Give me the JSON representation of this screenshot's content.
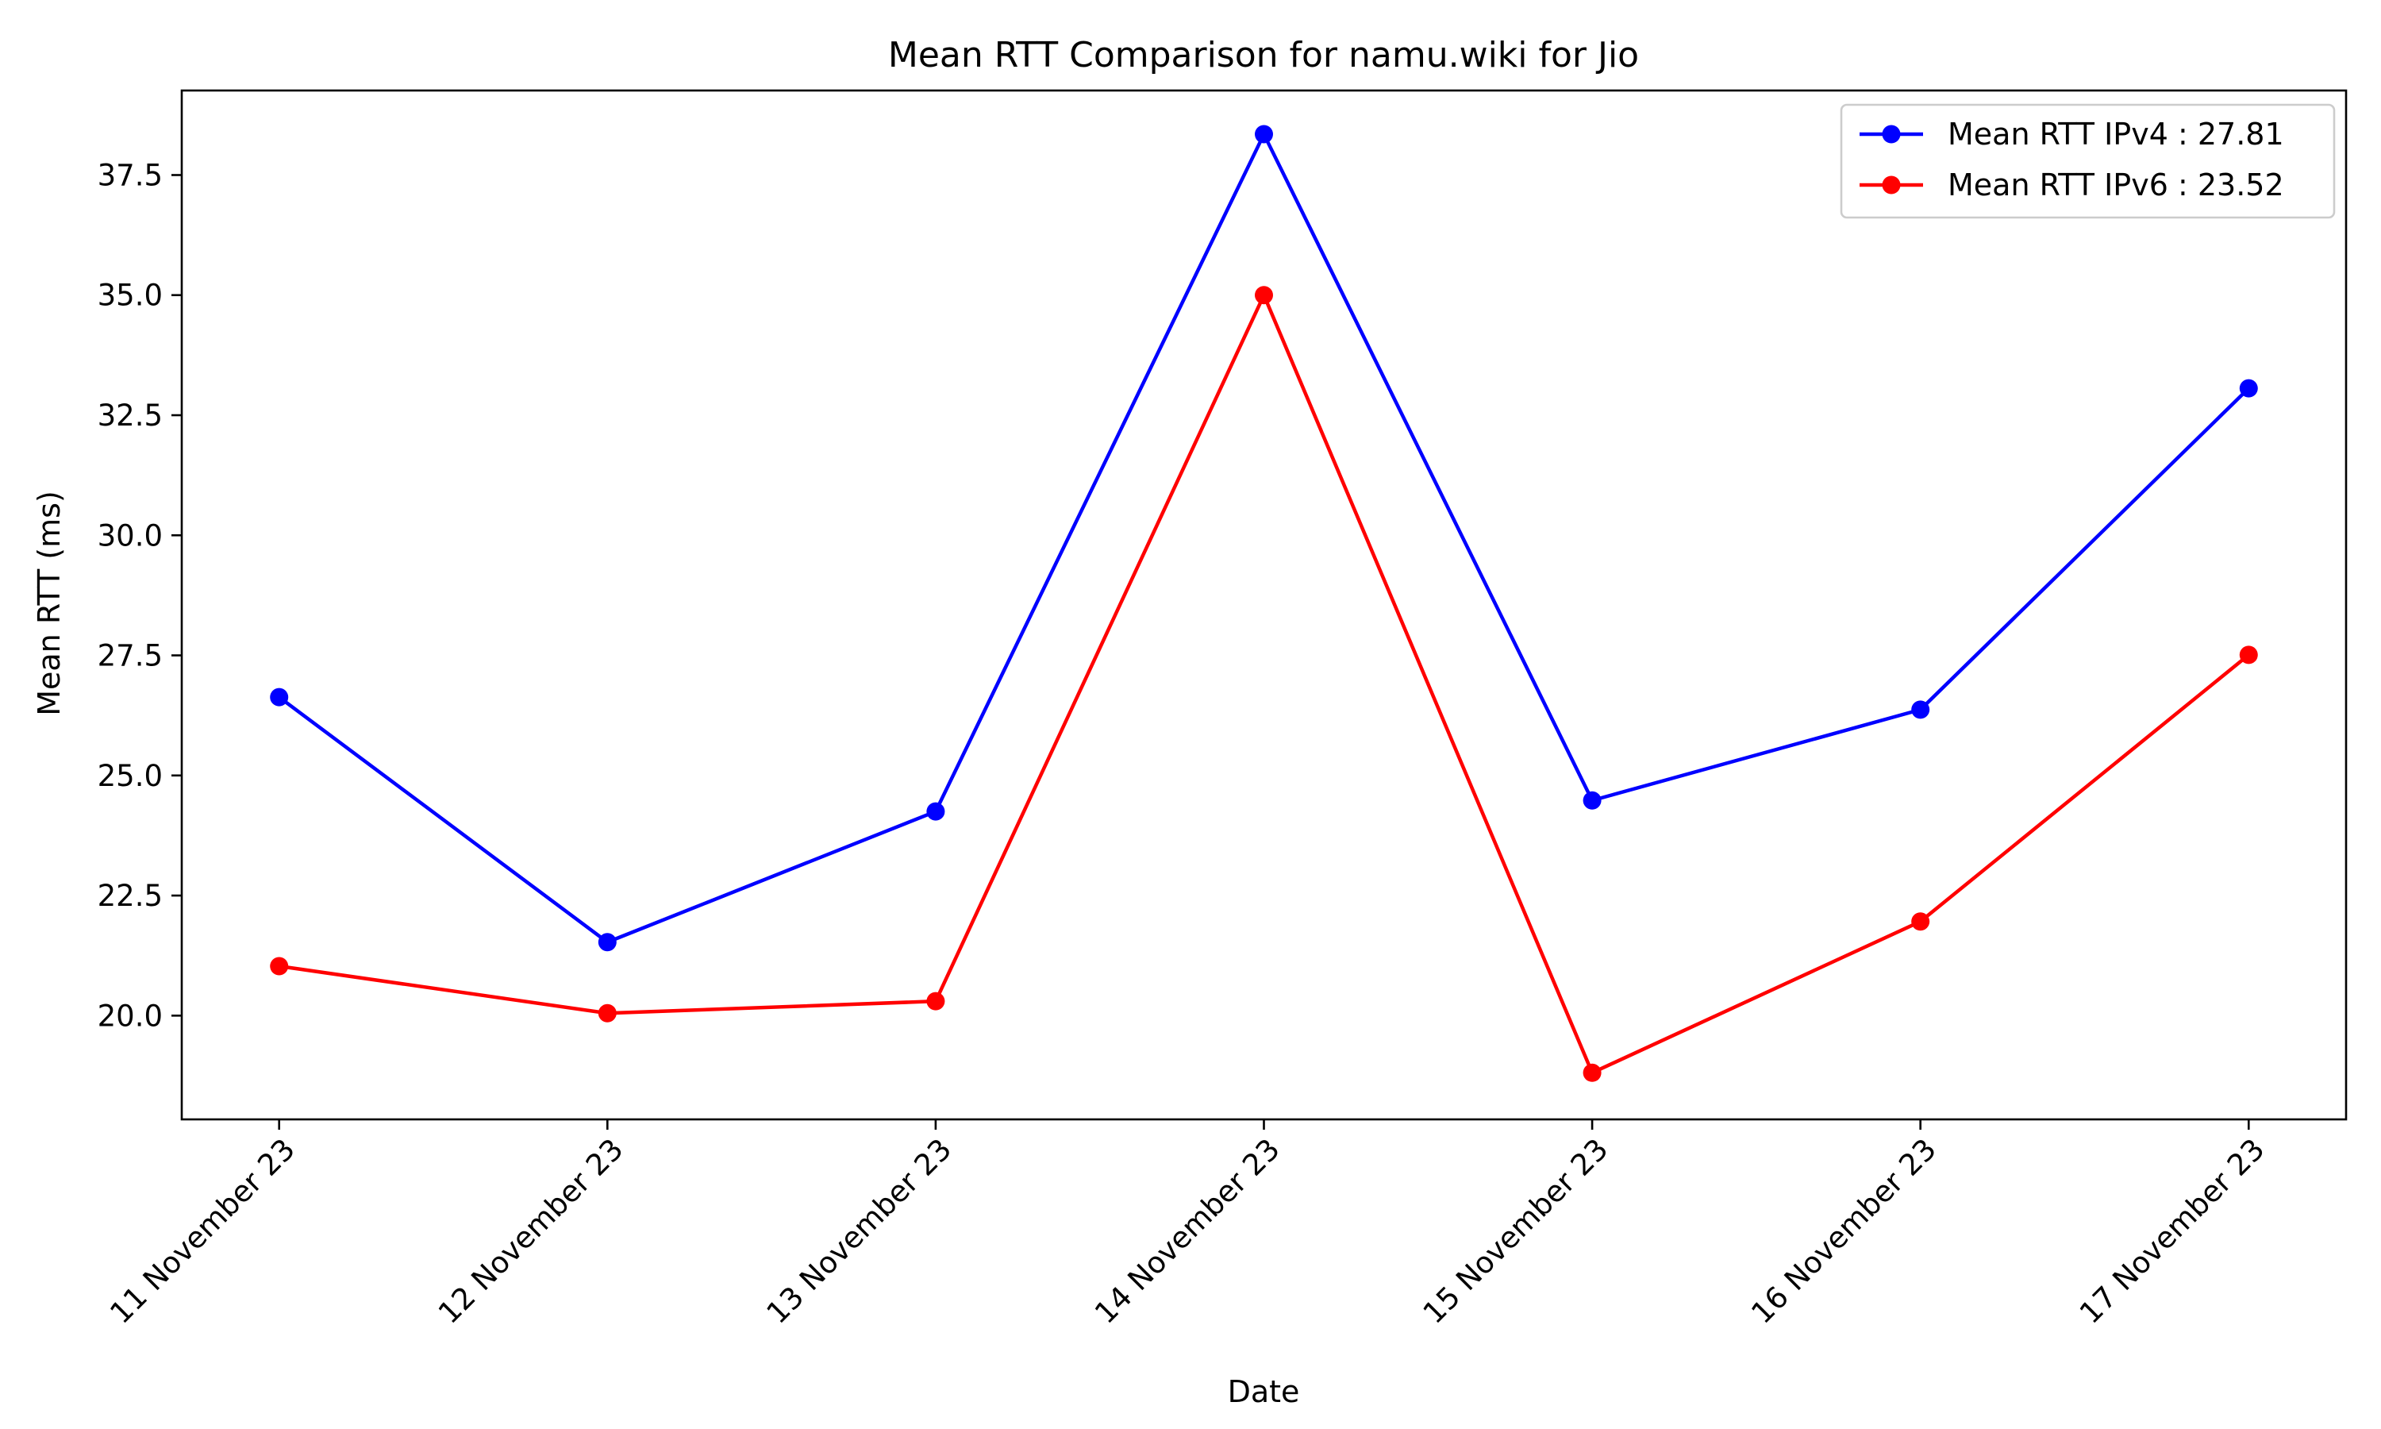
{
  "chart_data": {
    "type": "line",
    "title": "Mean RTT Comparison for namu.wiki for Jio",
    "xlabel": "Date",
    "ylabel": "Mean RTT (ms)",
    "categories": [
      "11 November 23",
      "12 November 23",
      "13 November 23",
      "14 November 23",
      "15 November 23",
      "16 November 23",
      "17 November 23"
    ],
    "ylim": [
      17.84,
      39.26
    ],
    "yticks": [
      20.0,
      22.5,
      25.0,
      27.5,
      30.0,
      32.5,
      35.0,
      37.5
    ],
    "ytick_labels": [
      "20.0",
      "22.5",
      "25.0",
      "27.5",
      "30.0",
      "32.5",
      "35.0",
      "37.5"
    ],
    "grid": false,
    "legend_position": "top-right",
    "series": [
      {
        "name": "Mean RTT IPv4 : 27.81",
        "color": "#0000ff",
        "marker": "circle",
        "values": [
          26.63,
          21.53,
          24.25,
          38.35,
          24.48,
          26.37,
          33.06
        ]
      },
      {
        "name": "Mean RTT IPv6 : 23.52",
        "color": "#ff0000",
        "marker": "circle",
        "values": [
          21.03,
          20.05,
          20.3,
          35.0,
          18.81,
          21.96,
          27.51
        ]
      }
    ]
  }
}
